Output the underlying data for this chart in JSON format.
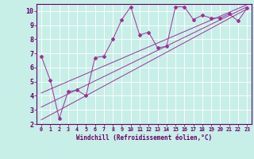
{
  "xlabel": "Windchill (Refroidissement éolien,°C)",
  "bg_color": "#c8eee8",
  "line_color": "#993399",
  "spine_color": "#660066",
  "xlim": [
    -0.5,
    23.5
  ],
  "ylim": [
    2,
    10.5
  ],
  "xticks": [
    0,
    1,
    2,
    3,
    4,
    5,
    6,
    7,
    8,
    9,
    10,
    11,
    12,
    13,
    14,
    15,
    16,
    17,
    18,
    19,
    20,
    21,
    22,
    23
  ],
  "yticks": [
    2,
    3,
    4,
    5,
    6,
    7,
    8,
    9,
    10
  ],
  "scatter_x": [
    0,
    1,
    2,
    3,
    4,
    5,
    6,
    7,
    8,
    9,
    10,
    11,
    12,
    13,
    14,
    15,
    16,
    17,
    18,
    19,
    20,
    21,
    22,
    23
  ],
  "scatter_y": [
    6.8,
    5.1,
    2.4,
    4.3,
    4.4,
    4.0,
    6.7,
    6.8,
    8.0,
    9.4,
    10.3,
    8.3,
    8.5,
    7.4,
    7.5,
    10.3,
    10.3,
    9.4,
    9.7,
    9.5,
    9.5,
    9.8,
    9.3,
    10.2
  ],
  "line1_x": [
    0,
    23
  ],
  "line1_y": [
    2.3,
    10.15
  ],
  "line2_x": [
    0,
    23
  ],
  "line2_y": [
    3.2,
    10.3
  ],
  "line3_x": [
    0,
    23
  ],
  "line3_y": [
    4.2,
    10.45
  ],
  "xlabel_fontsize": 5.5,
  "xtick_fontsize": 4.8,
  "ytick_fontsize": 6.0
}
